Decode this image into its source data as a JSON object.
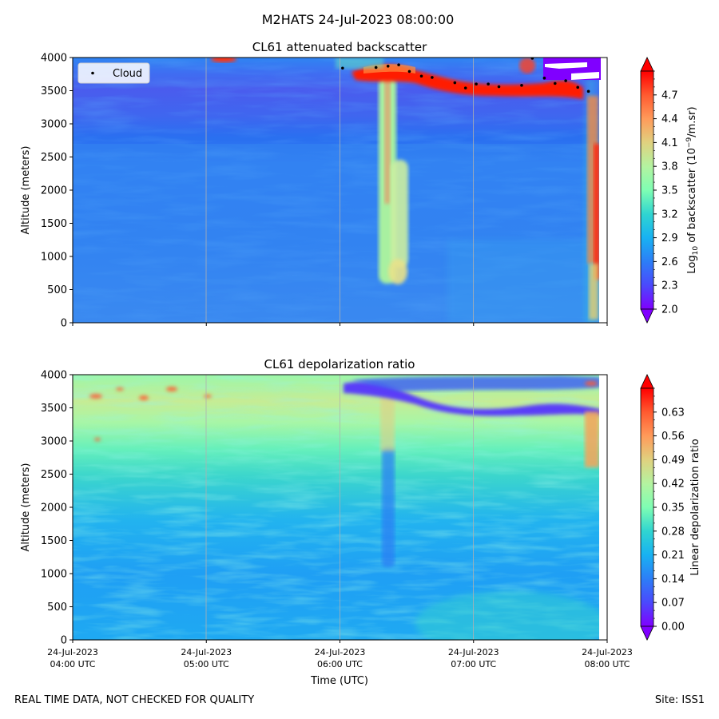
{
  "suptitle": "M2HATS 24-Jul-2023 08:00:00",
  "footer": {
    "left": "REAL TIME DATA, NOT CHECKED FOR QUALITY",
    "right": "Site: ISS1"
  },
  "chart_data": [
    {
      "type": "heatmap",
      "title": "CL61 attenuated backscatter",
      "xlabel": "",
      "ylabel": "Altitude (meters)",
      "ylim": [
        0,
        4000
      ],
      "yticks": [
        "0",
        "500",
        "1000",
        "1500",
        "2000",
        "2500",
        "3000",
        "3500",
        "4000"
      ],
      "colorbar": {
        "label_prefix": "Log",
        "label_sub": "10",
        "label_mid": " of backscatter (10",
        "label_sup": "−9",
        "label_suffix": "/m.sr)",
        "range": [
          2.0,
          5.0
        ],
        "ticks": [
          "2.0",
          "2.3",
          "2.6",
          "2.9",
          "3.2",
          "3.5",
          "3.8",
          "4.1",
          "4.4",
          "4.7"
        ]
      },
      "legend": {
        "label": "Cloud",
        "location": "upper-left"
      },
      "cloud_points": [
        {
          "t": 6.02,
          "alt": 3840
        },
        {
          "t": 6.27,
          "alt": 3850
        },
        {
          "t": 6.36,
          "alt": 3870
        },
        {
          "t": 6.44,
          "alt": 3890
        },
        {
          "t": 6.52,
          "alt": 3790
        },
        {
          "t": 6.61,
          "alt": 3720
        },
        {
          "t": 6.69,
          "alt": 3700
        },
        {
          "t": 6.86,
          "alt": 3620
        },
        {
          "t": 6.94,
          "alt": 3540
        },
        {
          "t": 7.02,
          "alt": 3600
        },
        {
          "t": 7.11,
          "alt": 3600
        },
        {
          "t": 7.19,
          "alt": 3560
        },
        {
          "t": 7.36,
          "alt": 3580
        },
        {
          "t": 7.44,
          "alt": 3990
        },
        {
          "t": 7.53,
          "alt": 3690
        },
        {
          "t": 7.61,
          "alt": 3610
        },
        {
          "t": 7.69,
          "alt": 3650
        },
        {
          "t": 7.78,
          "alt": 3550
        },
        {
          "t": 7.86,
          "alt": 3490
        }
      ]
    },
    {
      "type": "heatmap",
      "title": "CL61 depolarization ratio",
      "xlabel": "Time (UTC)",
      "ylabel": "Altitude (meters)",
      "ylim": [
        0,
        4000
      ],
      "yticks": [
        "0",
        "500",
        "1000",
        "1500",
        "2000",
        "2500",
        "3000",
        "3500",
        "4000"
      ],
      "colorbar": {
        "label": "Linear depolarization ratio",
        "range": [
          0.0,
          0.7
        ],
        "ticks": [
          "0.00",
          "0.07",
          "0.14",
          "0.21",
          "0.28",
          "0.35",
          "0.42",
          "0.49",
          "0.56",
          "0.63"
        ]
      }
    }
  ],
  "xaxis": {
    "range_hours": [
      4,
      8
    ],
    "ticks": [
      {
        "line1": "24-Jul-2023",
        "line2": "04:00 UTC"
      },
      {
        "line1": "24-Jul-2023",
        "line2": "05:00 UTC"
      },
      {
        "line1": "24-Jul-2023",
        "line2": "06:00 UTC"
      },
      {
        "line1": "24-Jul-2023",
        "line2": "07:00 UTC"
      },
      {
        "line1": "24-Jul-2023",
        "line2": "08:00 UTC"
      }
    ]
  }
}
